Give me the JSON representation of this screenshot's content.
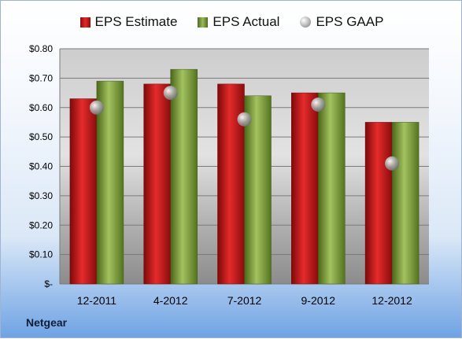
{
  "chart_data": {
    "type": "bar",
    "categories": [
      "12-2011",
      "4-2012",
      "7-2012",
      "9-2012",
      "12-2012"
    ],
    "series": [
      {
        "name": "EPS Estimate",
        "type": "bar",
        "values": [
          0.63,
          0.68,
          0.68,
          0.65,
          0.55
        ],
        "color": "#d21f1f"
      },
      {
        "name": "EPS Actual",
        "type": "bar",
        "values": [
          0.69,
          0.73,
          0.64,
          0.65,
          0.55
        ],
        "color": "#8fb04d"
      },
      {
        "name": "EPS GAAP",
        "type": "scatter",
        "values": [
          0.6,
          0.65,
          0.56,
          0.61,
          0.41
        ],
        "color": "#a8a8a8"
      }
    ],
    "ylim": [
      0,
      0.8
    ],
    "yticks": [
      0,
      0.1,
      0.2,
      0.3,
      0.4,
      0.5,
      0.6,
      0.7,
      0.8
    ],
    "ytick_labels": [
      "$-",
      "$0.10",
      "$0.20",
      "$0.30",
      "$0.40",
      "$0.50",
      "$0.60",
      "$0.70",
      "$0.80"
    ],
    "grid": true,
    "legend_position": "top"
  },
  "footer": {
    "company": "Netgear"
  }
}
